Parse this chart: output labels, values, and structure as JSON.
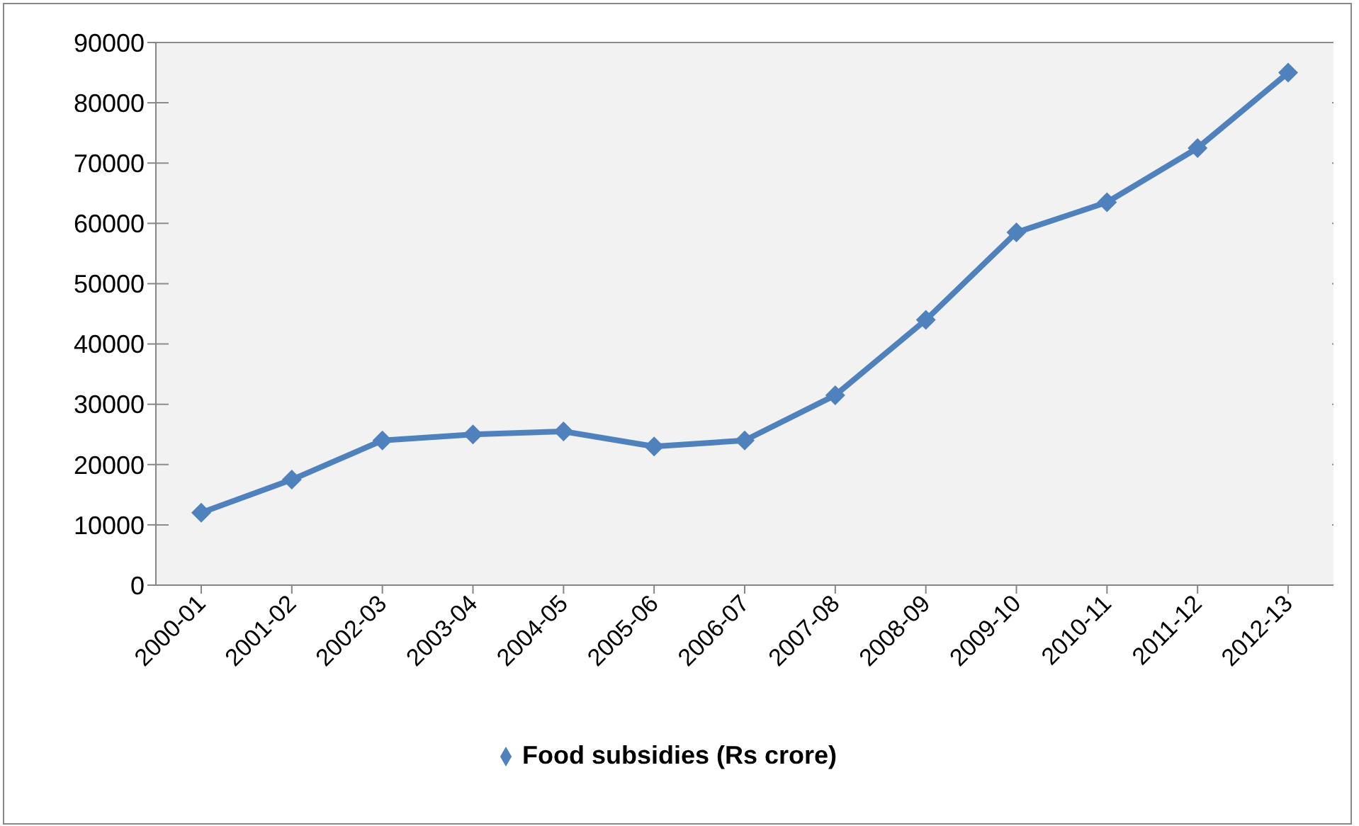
{
  "chart_data": {
    "type": "line",
    "categories": [
      "2000-01",
      "2001-02",
      "2002-03",
      "2003-04",
      "2004-05",
      "2005-06",
      "2006-07",
      "2007-08",
      "2008-09",
      "2009-10",
      "2010-11",
      "2011-12",
      "2012-13"
    ],
    "series": [
      {
        "name": "Food subsidies (Rs crore)",
        "color": "#4f81bd",
        "values": [
          12000,
          17500,
          24000,
          25000,
          25500,
          23000,
          24000,
          31500,
          44000,
          58500,
          63500,
          72500,
          85000
        ]
      }
    ],
    "ylim": [
      0,
      90000
    ],
    "yticks": [
      0,
      10000,
      20000,
      30000,
      40000,
      50000,
      60000,
      70000,
      80000,
      90000
    ],
    "grid": "y",
    "legend": "bottom",
    "marker": "diamond",
    "line_style": "solid"
  }
}
